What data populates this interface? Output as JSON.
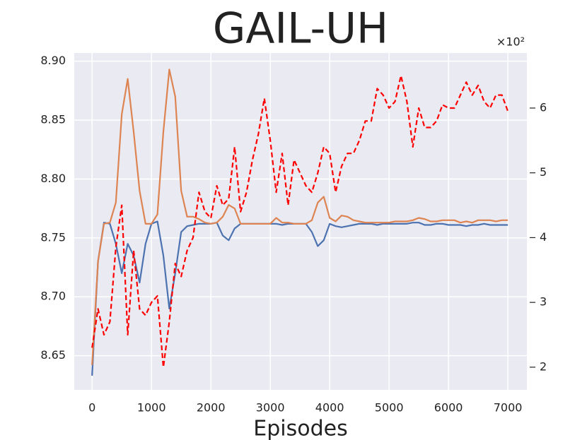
{
  "chart_data": {
    "type": "line",
    "title": "GAIL-UH",
    "xlabel": "Episodes",
    "y2_multiplier": "×10²",
    "x": [
      0,
      100,
      200,
      300,
      400,
      500,
      600,
      700,
      800,
      900,
      1000,
      1100,
      1200,
      1300,
      1400,
      1500,
      1600,
      1700,
      1800,
      1900,
      2000,
      2100,
      2200,
      2300,
      2400,
      2500,
      2600,
      2700,
      2800,
      2900,
      3000,
      3100,
      3200,
      3300,
      3400,
      3500,
      3600,
      3700,
      3800,
      3900,
      4000,
      4100,
      4200,
      4300,
      4400,
      4500,
      4600,
      4700,
      4800,
      4900,
      5000,
      5100,
      5200,
      5300,
      5400,
      5500,
      5600,
      5700,
      5800,
      5900,
      6000,
      6100,
      6200,
      6300,
      6400,
      6500,
      6600,
      6700,
      6800,
      6900,
      7000
    ],
    "series": [
      {
        "color": "#4c72b0",
        "axis": "y",
        "values": [
          8.633,
          8.73,
          8.763,
          8.762,
          8.745,
          8.72,
          8.745,
          8.735,
          8.712,
          8.745,
          8.762,
          8.764,
          8.735,
          8.69,
          8.72,
          8.755,
          8.76,
          8.761,
          8.762,
          8.762,
          8.762,
          8.763,
          8.752,
          8.748,
          8.758,
          8.762,
          8.762,
          8.762,
          8.762,
          8.762,
          8.762,
          8.762,
          8.761,
          8.762,
          8.762,
          8.762,
          8.762,
          8.755,
          8.743,
          8.748,
          8.762,
          8.76,
          8.759,
          8.76,
          8.761,
          8.762,
          8.762,
          8.762,
          8.761,
          8.762,
          8.762,
          8.762,
          8.762,
          8.762,
          8.763,
          8.763,
          8.761,
          8.761,
          8.762,
          8.762,
          8.761,
          8.761,
          8.761,
          8.76,
          8.761,
          8.761,
          8.762,
          8.761,
          8.761,
          8.761,
          8.761
        ]
      },
      {
        "color": "#dd8452",
        "axis": "y",
        "values": [
          8.642,
          8.73,
          8.762,
          8.763,
          8.78,
          8.855,
          8.885,
          8.84,
          8.79,
          8.762,
          8.762,
          8.77,
          8.84,
          8.893,
          8.87,
          8.79,
          8.768,
          8.768,
          8.766,
          8.763,
          8.762,
          8.763,
          8.768,
          8.778,
          8.775,
          8.762,
          8.762,
          8.762,
          8.762,
          8.762,
          8.762,
          8.767,
          8.763,
          8.763,
          8.762,
          8.762,
          8.762,
          8.765,
          8.78,
          8.785,
          8.767,
          8.764,
          8.769,
          8.768,
          8.765,
          8.764,
          8.763,
          8.763,
          8.763,
          8.763,
          8.763,
          8.764,
          8.764,
          8.764,
          8.765,
          8.767,
          8.766,
          8.764,
          8.764,
          8.765,
          8.765,
          8.765,
          8.763,
          8.764,
          8.763,
          8.765,
          8.765,
          8.765,
          8.764,
          8.765,
          8.765
        ]
      },
      {
        "color": "#ff0000",
        "axis": "y2",
        "dashed": true,
        "values": [
          2.3,
          2.9,
          2.5,
          2.7,
          3.85,
          4.5,
          2.5,
          3.8,
          2.9,
          2.8,
          3.0,
          3.1,
          2.0,
          2.7,
          3.6,
          3.4,
          3.8,
          4.0,
          4.7,
          4.4,
          4.3,
          4.8,
          4.5,
          4.6,
          5.4,
          4.4,
          4.7,
          5.2,
          5.6,
          6.15,
          5.5,
          4.7,
          5.3,
          4.5,
          5.2,
          5.0,
          4.8,
          4.7,
          5.0,
          5.4,
          5.3,
          4.7,
          5.1,
          5.3,
          5.3,
          5.5,
          5.8,
          5.8,
          6.3,
          6.2,
          6.0,
          6.1,
          6.5,
          6.1,
          5.4,
          6.0,
          5.7,
          5.7,
          5.8,
          6.05,
          6.0,
          6.0,
          6.2,
          6.4,
          6.2,
          6.35,
          6.1,
          6.0,
          6.2,
          6.2,
          5.95
        ]
      }
    ],
    "xlim": [
      -300,
      7320
    ],
    "xticks": [
      0,
      1000,
      2000,
      3000,
      4000,
      5000,
      6000,
      7000
    ],
    "ylim": [
      8.621,
      8.907
    ],
    "yticks": [
      8.65,
      {
        "value": 8.7,
        "label": "8.70"
      },
      8.75,
      {
        "value": 8.8,
        "label": "8.80"
      },
      8.85,
      {
        "value": 8.9,
        "label": "8.90"
      }
    ],
    "y2lim": [
      1.65,
      6.85
    ],
    "y2ticks": [
      2,
      3,
      4,
      5,
      6
    ],
    "grid": true,
    "background": "#eaeaf2"
  }
}
